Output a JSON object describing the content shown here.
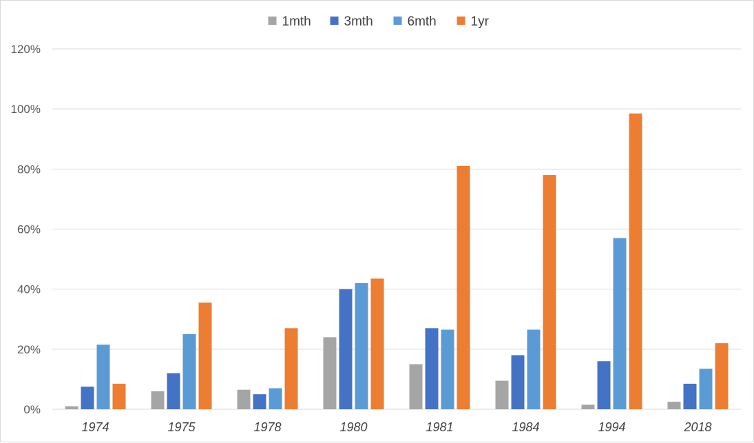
{
  "chart_data": {
    "type": "bar",
    "categories": [
      "1974",
      "1975",
      "1978",
      "1980",
      "1981",
      "1984",
      "1994",
      "2018"
    ],
    "series": [
      {
        "name": "1mth",
        "color": "#a5a5a5",
        "values": [
          1,
          6,
          6.5,
          24,
          15,
          9.5,
          1.5,
          2.5
        ]
      },
      {
        "name": "3mth",
        "color": "#4472c4",
        "values": [
          7.5,
          12,
          5,
          40,
          27,
          18,
          16,
          8.5
        ]
      },
      {
        "name": "6mth",
        "color": "#5b9bd5",
        "values": [
          21.5,
          25,
          7,
          42,
          26.5,
          26.5,
          57,
          13.5
        ]
      },
      {
        "name": "1yr",
        "color": "#ed7d31",
        "values": [
          8.5,
          35.5,
          27,
          43.5,
          81,
          78,
          98.5,
          22
        ]
      }
    ],
    "ylim": [
      0,
      120
    ],
    "yticks": [
      "0%",
      "20%",
      "40%",
      "60%",
      "80%",
      "100%",
      "120%"
    ],
    "ytick_values": [
      0,
      20,
      40,
      60,
      80,
      100,
      120
    ],
    "grid": true,
    "legend_position": "top-center"
  }
}
